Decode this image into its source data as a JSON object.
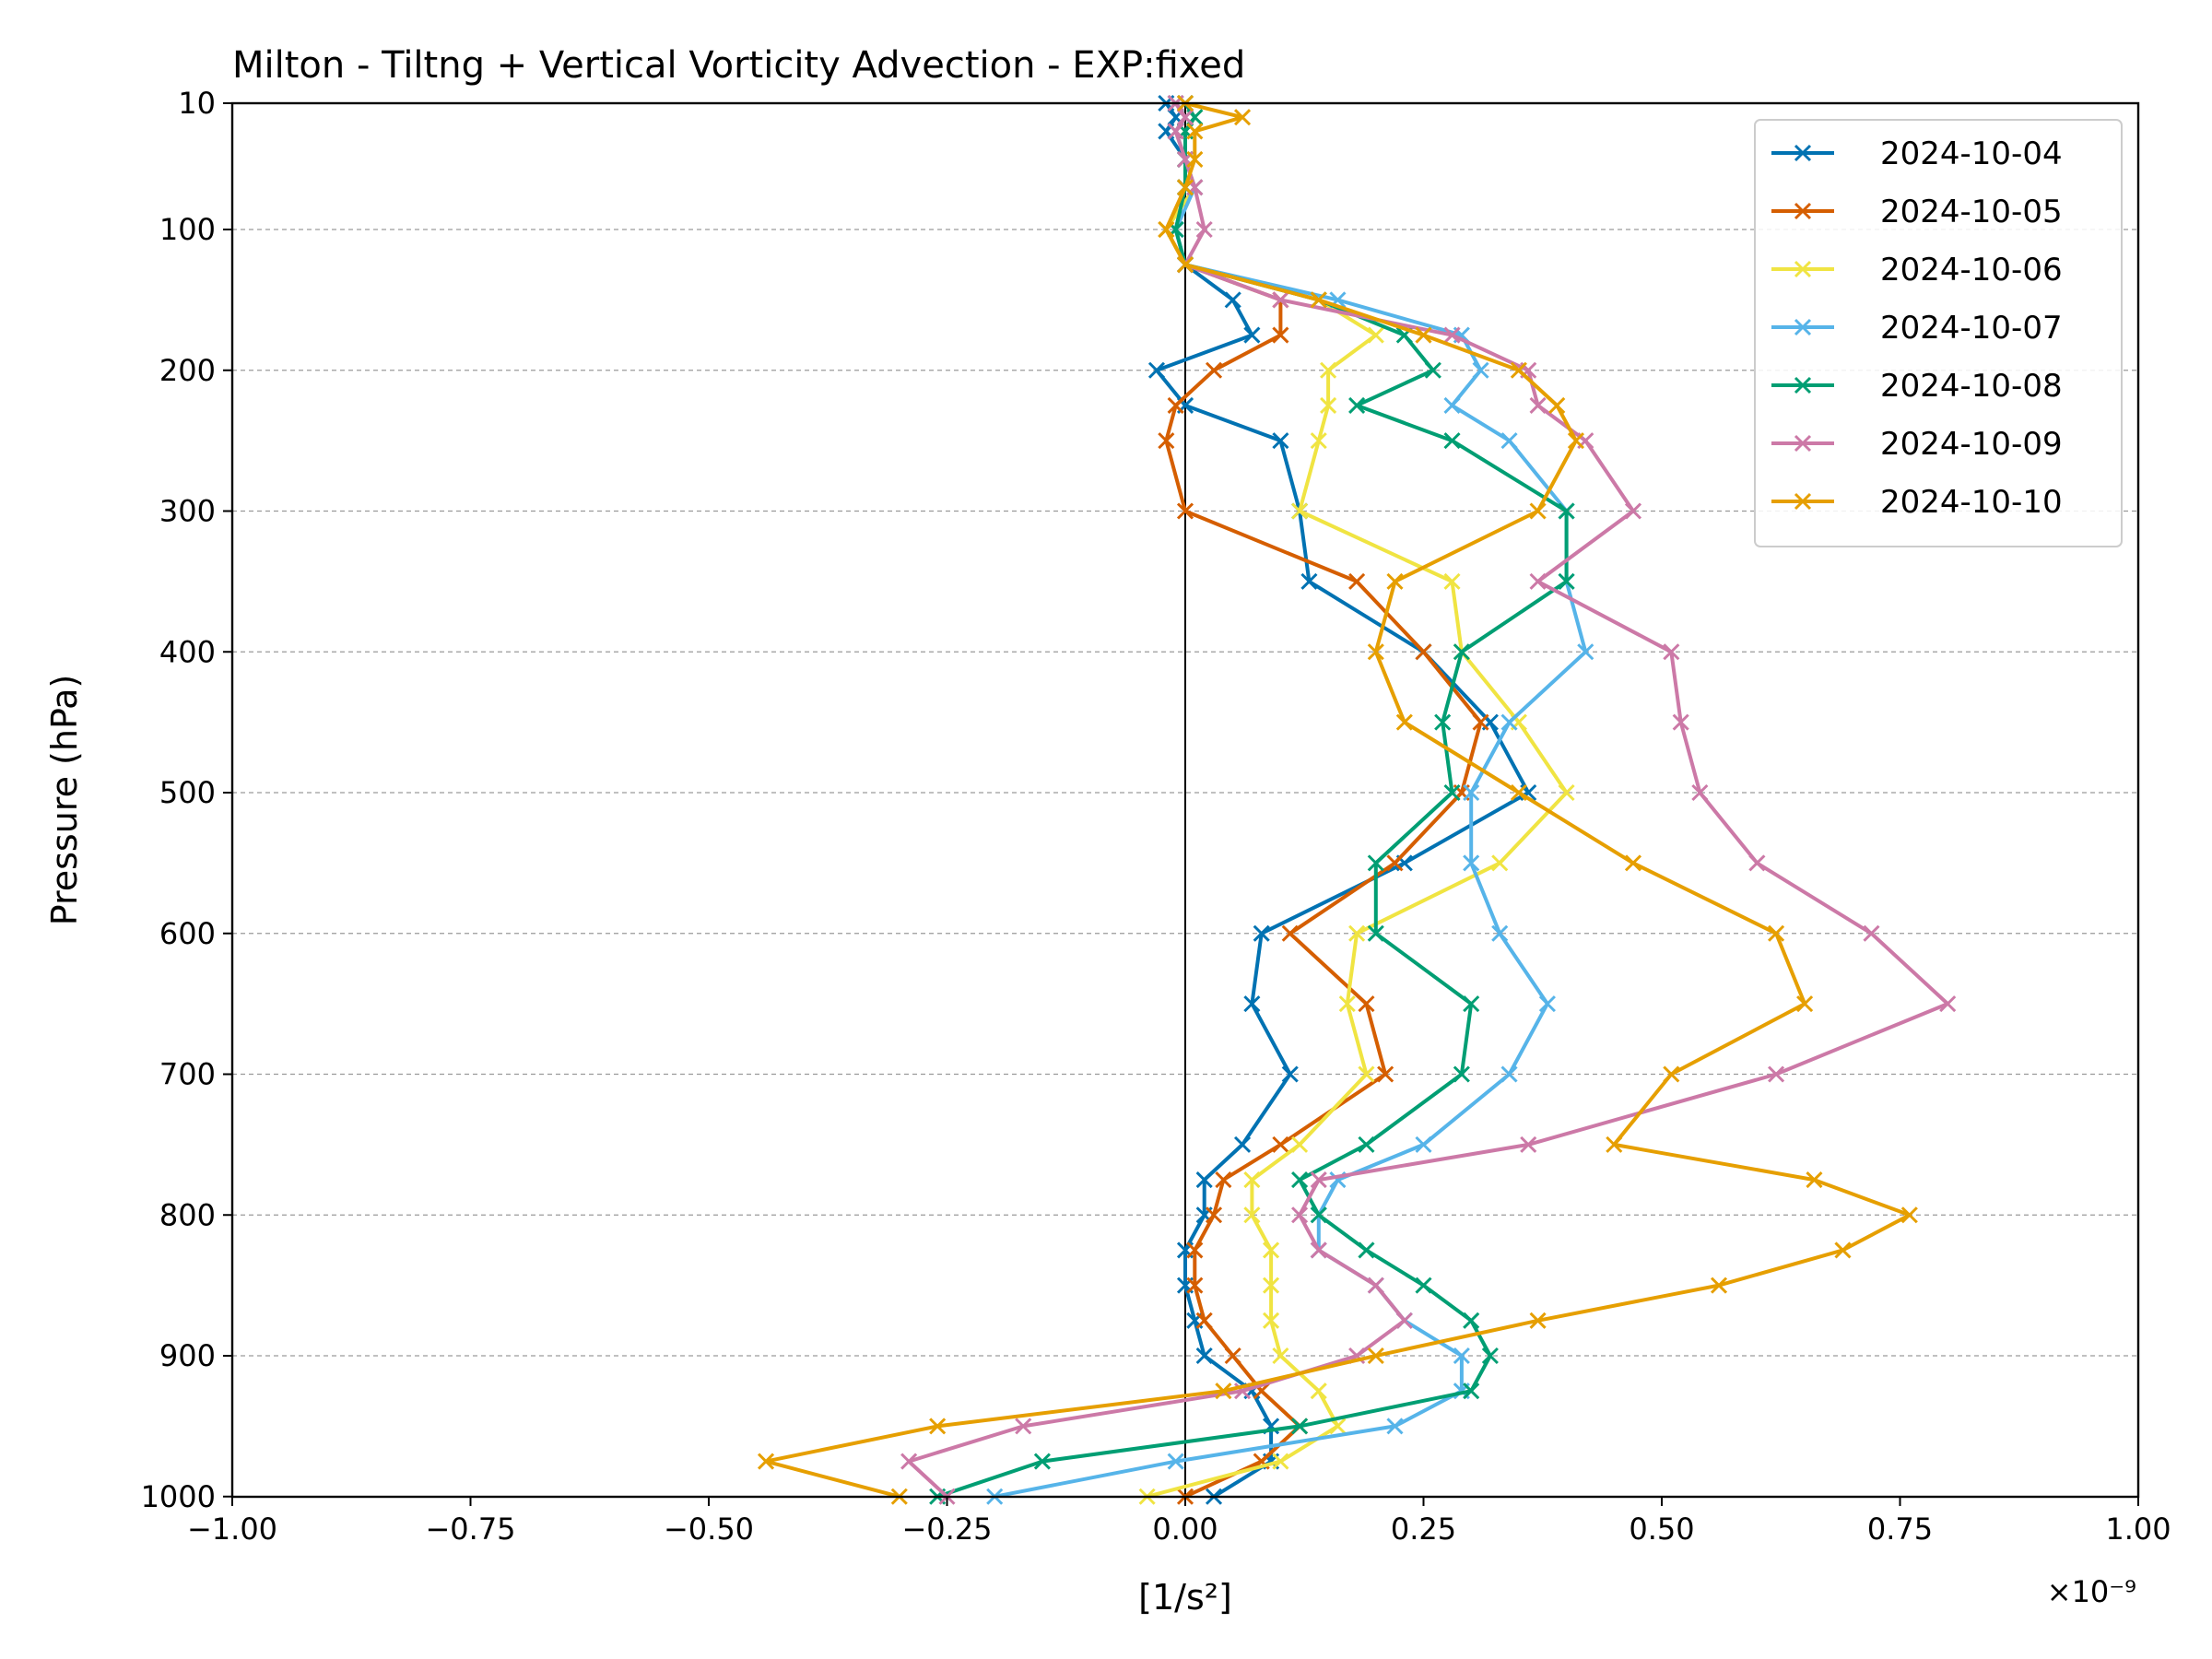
{
  "chart_data": {
    "type": "line",
    "title": "Milton - Tiltng + Vertical Vorticity Advection - EXP:fixed",
    "xlabel": "[1/s²]",
    "ylabel": "Pressure (hPa)",
    "x_scale_label": "×10⁻⁹",
    "x_multiplier": 1e-09,
    "xlim": [
      -1.0,
      1.0
    ],
    "ylim": [
      1000,
      10
    ],
    "y_inverted": true,
    "y_scale": "piecewise: 10-100 compressed, 100-1000 linear",
    "x_ticks": [
      -1.0,
      -0.75,
      -0.5,
      -0.25,
      0.0,
      0.25,
      0.5,
      0.75,
      1.0
    ],
    "x_tick_labels": [
      "−1.00",
      "−0.75",
      "−0.50",
      "−0.25",
      "0.00",
      "0.25",
      "0.50",
      "0.75",
      "1.00"
    ],
    "y_ticks": [
      10,
      100,
      200,
      300,
      400,
      500,
      600,
      700,
      800,
      900,
      1000
    ],
    "y_tick_labels": [
      "10",
      "100",
      "200",
      "300",
      "400",
      "500",
      "600",
      "700",
      "800",
      "900",
      "1000"
    ],
    "grid": "horizontal dashed at y ticks",
    "zero_line": true,
    "legend_position": "top-right",
    "marker": "x",
    "pressure_levels": [
      10,
      20,
      30,
      50,
      70,
      100,
      125,
      150,
      175,
      200,
      225,
      250,
      300,
      350,
      400,
      450,
      500,
      550,
      600,
      650,
      700,
      750,
      775,
      800,
      825,
      850,
      875,
      900,
      925,
      950,
      975,
      1000
    ],
    "series": [
      {
        "name": "2024-10-04",
        "color": "#0072b2",
        "values": [
          -0.02,
          -0.01,
          -0.02,
          0.0,
          0.0,
          -0.01,
          0.0,
          0.05,
          0.07,
          -0.03,
          0.0,
          0.1,
          0.12,
          0.13,
          0.25,
          0.32,
          0.36,
          0.23,
          0.08,
          0.07,
          0.11,
          0.06,
          0.02,
          0.02,
          0.0,
          0.0,
          0.01,
          0.02,
          0.07,
          0.09,
          0.09,
          0.03
        ]
      },
      {
        "name": "2024-10-05",
        "color": "#d55e00",
        "values": [
          -0.01,
          0.0,
          -0.01,
          0.0,
          0.0,
          -0.02,
          0.0,
          0.1,
          0.1,
          0.03,
          -0.01,
          -0.02,
          -0.0,
          0.18,
          0.25,
          0.31,
          0.29,
          0.22,
          0.11,
          0.19,
          0.21,
          0.1,
          0.04,
          0.03,
          0.01,
          0.01,
          0.02,
          0.05,
          0.08,
          0.12,
          0.08,
          0.0
        ]
      },
      {
        "name": "2024-10-06",
        "color": "#f0e442",
        "values": [
          0.0,
          0.01,
          0.0,
          0.0,
          0.01,
          -0.02,
          0.0,
          0.14,
          0.2,
          0.15,
          0.15,
          0.14,
          0.12,
          0.28,
          0.29,
          0.35,
          0.4,
          0.33,
          0.18,
          0.17,
          0.19,
          0.12,
          0.07,
          0.07,
          0.09,
          0.09,
          0.09,
          0.1,
          0.14,
          0.16,
          0.1,
          -0.04
        ]
      },
      {
        "name": "2024-10-07",
        "color": "#56b4e9",
        "values": [
          -0.01,
          0.0,
          -0.01,
          0.0,
          0.01,
          -0.01,
          0.0,
          0.16,
          0.29,
          0.31,
          0.28,
          0.34,
          0.4,
          0.4,
          0.42,
          0.34,
          0.3,
          0.3,
          0.33,
          0.38,
          0.34,
          0.25,
          0.16,
          0.14,
          0.14,
          0.2,
          0.23,
          0.29,
          0.29,
          0.22,
          -0.01,
          -0.2
        ]
      },
      {
        "name": "2024-10-08",
        "color": "#009e73",
        "values": [
          0.0,
          0.01,
          0.0,
          0.0,
          0.0,
          -0.01,
          0.0,
          0.14,
          0.23,
          0.26,
          0.18,
          0.28,
          0.4,
          0.4,
          0.29,
          0.27,
          0.28,
          0.2,
          0.2,
          0.3,
          0.29,
          0.19,
          0.12,
          0.14,
          0.19,
          0.25,
          0.3,
          0.32,
          0.3,
          0.12,
          -0.15,
          -0.26
        ]
      },
      {
        "name": "2024-10-09",
        "color": "#cc79a7",
        "values": [
          -0.01,
          0.0,
          -0.01,
          0.0,
          0.01,
          0.02,
          0.0,
          0.1,
          0.28,
          0.36,
          0.37,
          0.42,
          0.47,
          0.37,
          0.51,
          0.52,
          0.54,
          0.6,
          0.72,
          0.8,
          0.62,
          0.36,
          0.14,
          0.12,
          0.14,
          0.2,
          0.23,
          0.18,
          0.06,
          -0.17,
          -0.29,
          -0.25
        ]
      },
      {
        "name": "2024-10-10",
        "color": "#e69f00",
        "values": [
          0.0,
          0.06,
          0.01,
          0.01,
          0.0,
          -0.02,
          0.0,
          0.14,
          0.25,
          0.35,
          0.39,
          0.41,
          0.37,
          0.22,
          0.2,
          0.23,
          0.35,
          0.47,
          0.62,
          0.65,
          0.51,
          0.45,
          0.66,
          0.76,
          0.69,
          0.56,
          0.37,
          0.2,
          0.04,
          -0.26,
          -0.44,
          -0.3
        ]
      }
    ]
  }
}
